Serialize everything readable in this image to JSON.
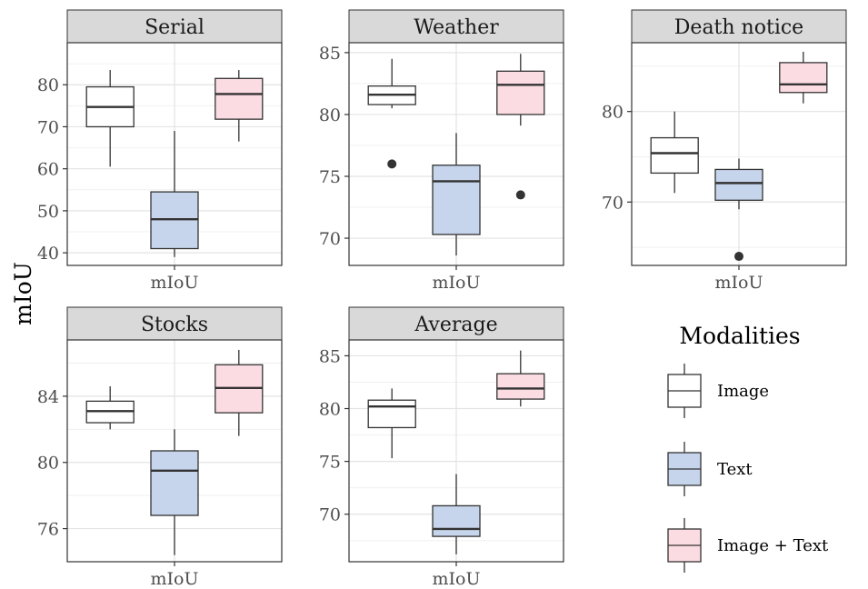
{
  "figure": {
    "y_title": "mIoU",
    "legend_title": "Modalities",
    "legend_items": [
      {
        "label": "Image",
        "fill": "#ffffff"
      },
      {
        "label": "Text",
        "fill": "#c6d4ec"
      },
      {
        "label": "Image + Text",
        "fill": "#fcdce3"
      }
    ]
  },
  "chart_data": [
    {
      "type": "box",
      "title": "Serial",
      "xlabel": "mIoU",
      "ylim": [
        37,
        90
      ],
      "yticks": [
        40,
        50,
        60,
        70,
        80
      ],
      "grid": true,
      "series": [
        {
          "name": "Image",
          "whisker_low": 60.5,
          "q1": 70,
          "median": 74.7,
          "q3": 79.5,
          "whisker_high": 83.5,
          "outliers": []
        },
        {
          "name": "Text",
          "whisker_low": 39,
          "q1": 41,
          "median": 48,
          "q3": 54.5,
          "whisker_high": 69,
          "outliers": []
        },
        {
          "name": "Image + Text",
          "whisker_low": 66.5,
          "q1": 71.8,
          "median": 77.8,
          "q3": 81.5,
          "whisker_high": 83.5,
          "outliers": []
        }
      ]
    },
    {
      "type": "box",
      "title": "Weather",
      "xlabel": "mIoU",
      "ylim": [
        67.8,
        85.8
      ],
      "yticks": [
        70,
        75,
        80,
        85
      ],
      "grid": true,
      "series": [
        {
          "name": "Image",
          "whisker_low": 80.5,
          "q1": 80.8,
          "median": 81.6,
          "q3": 82.3,
          "whisker_high": 84.5,
          "outliers": [
            76
          ]
        },
        {
          "name": "Text",
          "whisker_low": 68.6,
          "q1": 70.3,
          "median": 74.6,
          "q3": 75.9,
          "whisker_high": 78.5,
          "outliers": []
        },
        {
          "name": "Image + Text",
          "whisker_low": 79.1,
          "q1": 80,
          "median": 82.4,
          "q3": 83.5,
          "whisker_high": 84.9,
          "outliers": [
            73.5
          ]
        }
      ]
    },
    {
      "type": "box",
      "title": "Death notice",
      "xlabel": "mIoU",
      "ylim": [
        63,
        87.6
      ],
      "yticks": [
        70,
        80
      ],
      "grid": true,
      "series": [
        {
          "name": "Image",
          "whisker_low": 71,
          "q1": 73.2,
          "median": 75.4,
          "q3": 77.1,
          "whisker_high": 80,
          "outliers": []
        },
        {
          "name": "Text",
          "whisker_low": 69.2,
          "q1": 70.2,
          "median": 72.1,
          "q3": 73.6,
          "whisker_high": 74.8,
          "outliers": [
            64
          ]
        },
        {
          "name": "Image + Text",
          "whisker_low": 80.9,
          "q1": 82.1,
          "median": 83,
          "q3": 85.4,
          "whisker_high": 86.6,
          "outliers": []
        }
      ]
    },
    {
      "type": "box",
      "title": "Stocks",
      "xlabel": "mIoU",
      "ylim": [
        74,
        87.4
      ],
      "yticks": [
        76,
        80,
        84
      ],
      "grid": true,
      "series": [
        {
          "name": "Image",
          "whisker_low": 82,
          "q1": 82.4,
          "median": 83.1,
          "q3": 83.7,
          "whisker_high": 84.6,
          "outliers": []
        },
        {
          "name": "Text",
          "whisker_low": 74.4,
          "q1": 76.8,
          "median": 79.5,
          "q3": 80.7,
          "whisker_high": 82,
          "outliers": []
        },
        {
          "name": "Image + Text",
          "whisker_low": 81.6,
          "q1": 83,
          "median": 84.5,
          "q3": 85.9,
          "whisker_high": 86.8,
          "outliers": []
        }
      ]
    },
    {
      "type": "box",
      "title": "Average",
      "xlabel": "mIoU",
      "ylim": [
        65.5,
        86.5
      ],
      "yticks": [
        70,
        75,
        80,
        85
      ],
      "grid": true,
      "series": [
        {
          "name": "Image",
          "whisker_low": 75.3,
          "q1": 78.2,
          "median": 80.2,
          "q3": 80.8,
          "whisker_high": 81.9,
          "outliers": []
        },
        {
          "name": "Text",
          "whisker_low": 66.2,
          "q1": 67.9,
          "median": 68.6,
          "q3": 70.8,
          "whisker_high": 73.8,
          "outliers": []
        },
        {
          "name": "Image + Text",
          "whisker_low": 80.2,
          "q1": 80.9,
          "median": 81.9,
          "q3": 83.3,
          "whisker_high": 85.5,
          "outliers": []
        }
      ]
    }
  ]
}
